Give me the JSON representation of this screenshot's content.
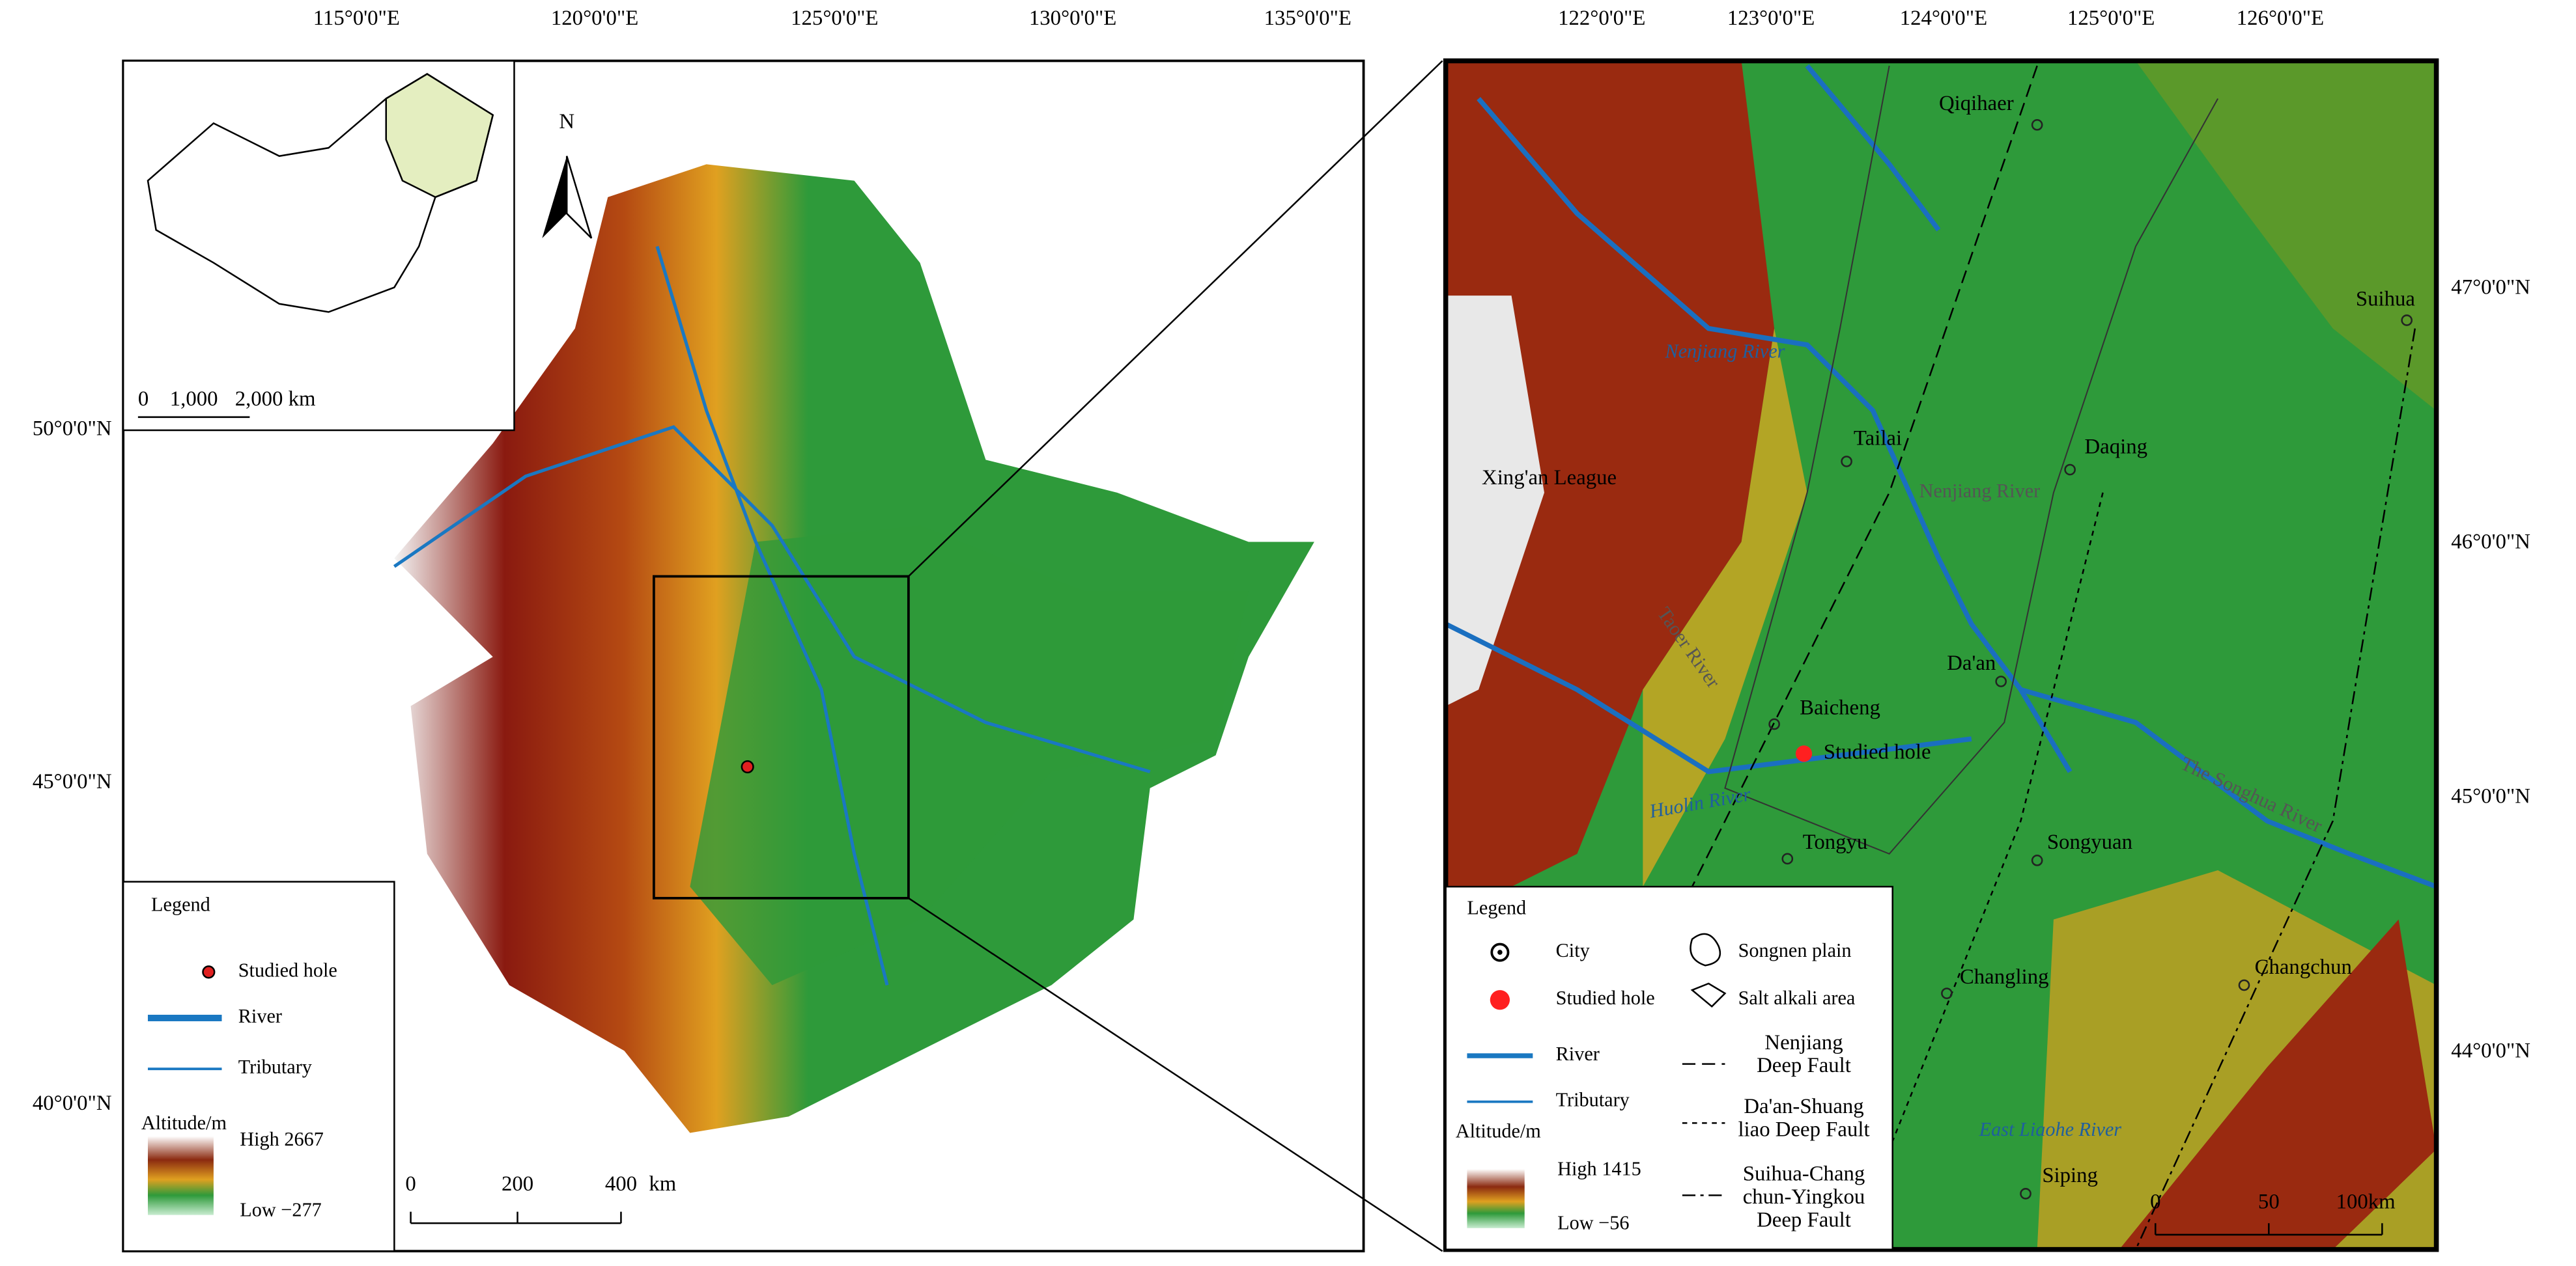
{
  "left_map": {
    "x_labels": [
      "115°0'0\"E",
      "120°0'0\"E",
      "125°0'0\"E",
      "130°0'0\"E",
      "135°0'0\"E"
    ],
    "y_labels": [
      "50°0'0\"N",
      "45°0'0\"N",
      "40°0'0\"N"
    ],
    "north": "N",
    "inset_scale": [
      "0",
      "1,000",
      "2,000 km"
    ],
    "legend": {
      "title": "Legend",
      "items": [
        "Studied hole",
        "River",
        "Tributary"
      ],
      "altitude_title": "Altitude/m",
      "high": "High  2667",
      "low": "Low  −277"
    },
    "scale": [
      "0",
      "200",
      "400",
      "km"
    ]
  },
  "right_map": {
    "x_labels": [
      "122°0'0\"E",
      "123°0'0\"E",
      "124°0'0\"E",
      "125°0'0\"E",
      "126°0'0\"E"
    ],
    "y_labels": [
      "47°0'0\"N",
      "46°0'0\"N",
      "45°0'0\"N",
      "44°0'0\"N"
    ],
    "cities": [
      "Qiqihaer",
      "Suihua",
      "Tailai",
      "Daqing",
      "Da'an",
      "Baicheng",
      "Tongyu",
      "Songyuan",
      "Changling",
      "Changchun",
      "Siping"
    ],
    "region_label": "Xing'an League",
    "studied_hole": "Studied hole",
    "rivers": [
      "Nenjiang River",
      "Nenjiang River",
      "Taoer River",
      "Huolin River",
      "The Songhua River",
      "East Liaohe River"
    ],
    "legend": {
      "title": "Legend",
      "items": [
        "City",
        "Studied hole",
        "River",
        "Tributary",
        "Songnen plain",
        "Salt alkali area"
      ],
      "faults": [
        [
          "Nenjiang",
          "Deep Fault"
        ],
        [
          "Da'an-Shuang",
          "liao Deep Fault"
        ],
        [
          "Suihua-Chang",
          "chun-Yingkou",
          "Deep Fault"
        ]
      ],
      "altitude_title": "Altitude/m",
      "high": "High 1415",
      "low": "Low  −56"
    },
    "scale": [
      "0",
      "50",
      "100km"
    ]
  }
}
